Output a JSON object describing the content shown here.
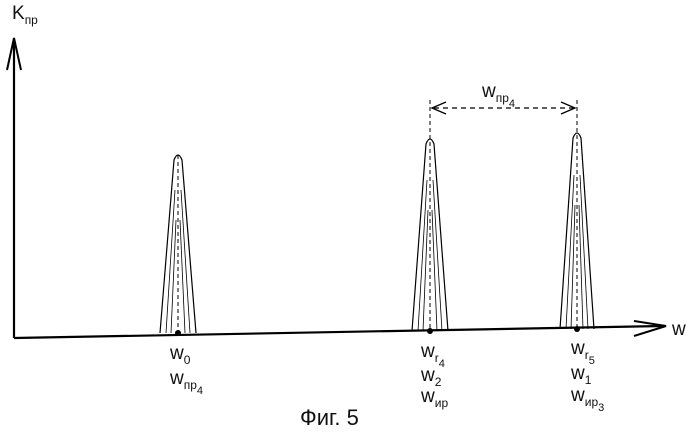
{
  "axes": {
    "y_label": {
      "main": "K",
      "sub": "пр"
    },
    "x_label": "w"
  },
  "peaks": [
    {
      "id": "peak-0",
      "labels": [
        {
          "main": "w",
          "sub": "0",
          "subsub": ""
        },
        {
          "main": "w",
          "sub": "пр",
          "subsub": "4"
        }
      ]
    },
    {
      "id": "peak-1",
      "labels": [
        {
          "main": "w",
          "sub": "r",
          "subsub": "4"
        },
        {
          "main": "w",
          "sub": "2",
          "subsub": ""
        },
        {
          "main": "w",
          "sub": "ир",
          "subsub": ""
        }
      ]
    },
    {
      "id": "peak-2",
      "labels": [
        {
          "main": "w",
          "sub": "r",
          "subsub": "5"
        },
        {
          "main": "w",
          "sub": "1",
          "subsub": ""
        },
        {
          "main": "w",
          "sub": "ир",
          "subsub": "3"
        }
      ]
    }
  ],
  "interval": {
    "main": "w",
    "sub": "пр",
    "subsub": "4"
  },
  "caption": "Фиг. 5"
}
